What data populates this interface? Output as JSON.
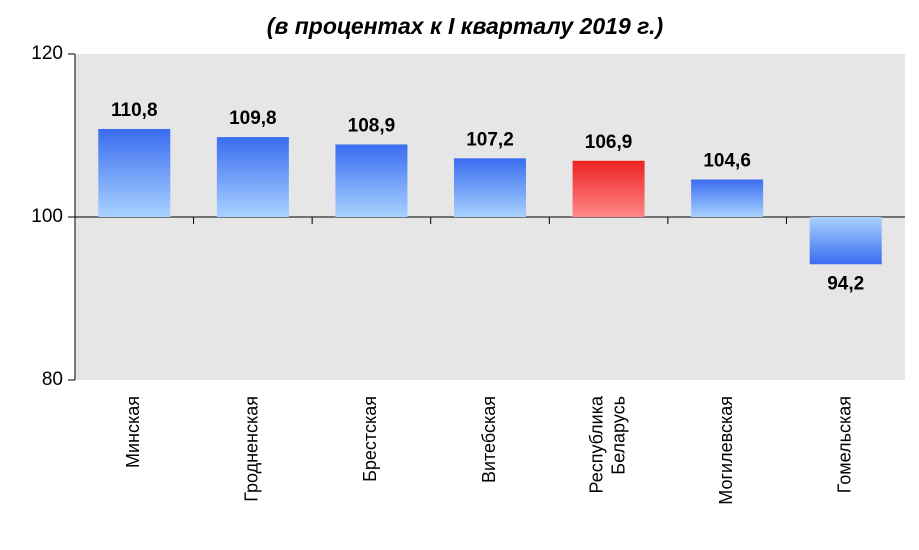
{
  "chart_data": {
    "type": "bar",
    "title": "(в процентах к I кварталу 2019 г.)",
    "categories": [
      "Минская",
      "Гродненская",
      "Брестская",
      "Витебская",
      "Республика Беларусь",
      "Могилевская",
      "Гомельская"
    ],
    "values": [
      110.8,
      109.8,
      108.9,
      107.2,
      106.9,
      104.6,
      94.2
    ],
    "value_labels": [
      "110,8",
      "109,8",
      "108,9",
      "107,2",
      "106,9",
      "104,6",
      "94,2"
    ],
    "colors": [
      "#3a6cf0",
      "#3a6cf0",
      "#3a6cf0",
      "#3a6cf0",
      "#ee2222",
      "#3a6cf0",
      "#3a6cf0"
    ],
    "baseline": 100,
    "ylim": [
      80,
      120
    ],
    "yticks": [
      80,
      100,
      120
    ]
  }
}
